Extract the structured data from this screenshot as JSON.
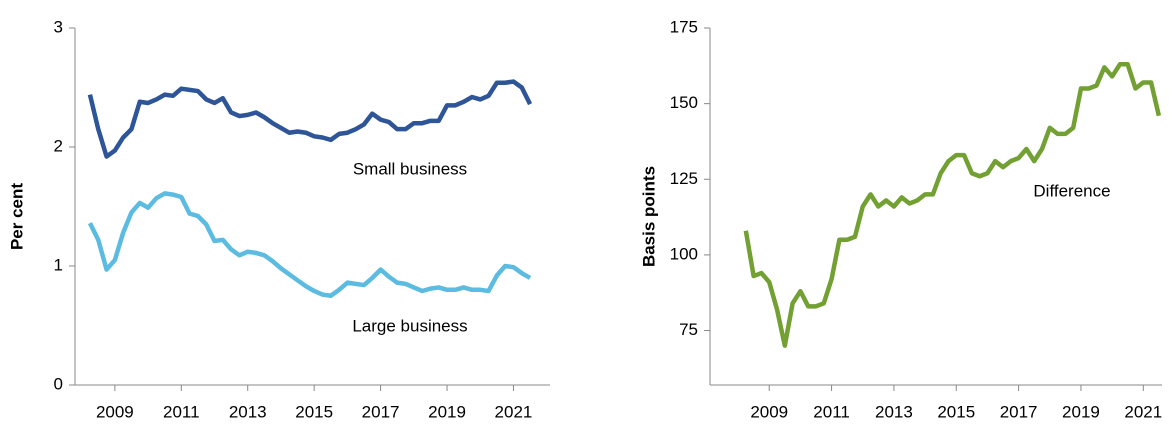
{
  "chart_data": [
    {
      "type": "line",
      "ylabel": "Per cent",
      "x": [
        2008.25,
        2008.5,
        2008.75,
        2009,
        2009.25,
        2009.5,
        2009.75,
        2010,
        2010.25,
        2010.5,
        2010.75,
        2011,
        2011.25,
        2011.5,
        2011.75,
        2012,
        2012.25,
        2012.5,
        2012.75,
        2013,
        2013.25,
        2013.5,
        2013.75,
        2014,
        2014.25,
        2014.5,
        2014.75,
        2015,
        2015.25,
        2015.5,
        2015.75,
        2016,
        2016.25,
        2016.5,
        2016.75,
        2017,
        2017.25,
        2017.5,
        2017.75,
        2018,
        2018.25,
        2018.5,
        2018.75,
        2019,
        2019.25,
        2019.5,
        2019.75,
        2020,
        2020.25,
        2020.5,
        2020.75,
        2021,
        2021.25,
        2021.5
      ],
      "series": [
        {
          "name": "Small business",
          "color": "#2e5597",
          "values": [
            2.44,
            2.15,
            1.92,
            1.97,
            2.08,
            2.15,
            2.38,
            2.37,
            2.4,
            2.44,
            2.43,
            2.49,
            2.48,
            2.47,
            2.4,
            2.37,
            2.41,
            2.29,
            2.26,
            2.27,
            2.29,
            2.25,
            2.2,
            2.16,
            2.12,
            2.13,
            2.12,
            2.09,
            2.08,
            2.06,
            2.11,
            2.12,
            2.15,
            2.19,
            2.28,
            2.23,
            2.21,
            2.15,
            2.15,
            2.2,
            2.2,
            2.22,
            2.22,
            2.35,
            2.35,
            2.38,
            2.42,
            2.4,
            2.43,
            2.54,
            2.54,
            2.55,
            2.5,
            2.36
          ]
        },
        {
          "name": "Large business",
          "color": "#5bbbe0",
          "values": [
            1.36,
            1.22,
            0.97,
            1.05,
            1.28,
            1.45,
            1.53,
            1.49,
            1.57,
            1.61,
            1.6,
            1.58,
            1.44,
            1.42,
            1.35,
            1.21,
            1.22,
            1.14,
            1.09,
            1.12,
            1.11,
            1.09,
            1.04,
            0.98,
            0.93,
            0.88,
            0.83,
            0.79,
            0.76,
            0.75,
            0.8,
            0.86,
            0.85,
            0.84,
            0.9,
            0.97,
            0.91,
            0.86,
            0.85,
            0.82,
            0.79,
            0.81,
            0.82,
            0.8,
            0.8,
            0.82,
            0.8,
            0.8,
            0.79,
            0.92,
            1.0,
            0.99,
            0.94,
            0.9
          ]
        }
      ],
      "xlim": [
        2007.8,
        2022.1
      ],
      "xticks": [
        2009,
        2011,
        2013,
        2015,
        2017,
        2019,
        2021
      ],
      "ylim": [
        0,
        3
      ],
      "yticks": [
        0,
        1,
        2,
        3
      ]
    },
    {
      "type": "line",
      "ylabel": "Basis points",
      "x": [
        2008.25,
        2008.5,
        2008.75,
        2009,
        2009.25,
        2009.5,
        2009.75,
        2010,
        2010.25,
        2010.5,
        2010.75,
        2011,
        2011.25,
        2011.5,
        2011.75,
        2012,
        2012.25,
        2012.5,
        2012.75,
        2013,
        2013.25,
        2013.5,
        2013.75,
        2014,
        2014.25,
        2014.5,
        2014.75,
        2015,
        2015.25,
        2015.5,
        2015.75,
        2016,
        2016.25,
        2016.5,
        2016.75,
        2017,
        2017.25,
        2017.5,
        2017.75,
        2018,
        2018.25,
        2018.5,
        2018.75,
        2019,
        2019.25,
        2019.5,
        2019.75,
        2020,
        2020.25,
        2020.5,
        2020.75,
        2021,
        2021.25,
        2021.5
      ],
      "series": [
        {
          "name": "Difference",
          "color": "#72a033",
          "values": [
            108,
            93,
            94,
            91,
            82,
            70,
            84,
            88,
            83,
            83,
            84,
            92,
            105,
            105,
            106,
            116,
            120,
            116,
            118,
            116,
            119,
            117,
            118,
            120,
            120,
            127,
            131,
            133,
            133,
            127,
            126,
            127,
            131,
            129,
            131,
            132,
            135,
            131,
            135,
            142,
            140,
            140,
            142,
            155,
            155,
            156,
            162,
            159,
            163,
            163,
            155,
            157,
            157,
            146
          ]
        }
      ],
      "xlim": [
        2007.1,
        2021.6
      ],
      "xticks": [
        2009,
        2011,
        2013,
        2015,
        2017,
        2019,
        2021
      ],
      "ylim": [
        57,
        175
      ],
      "yticks": [
        75,
        100,
        125,
        150,
        175
      ]
    }
  ]
}
